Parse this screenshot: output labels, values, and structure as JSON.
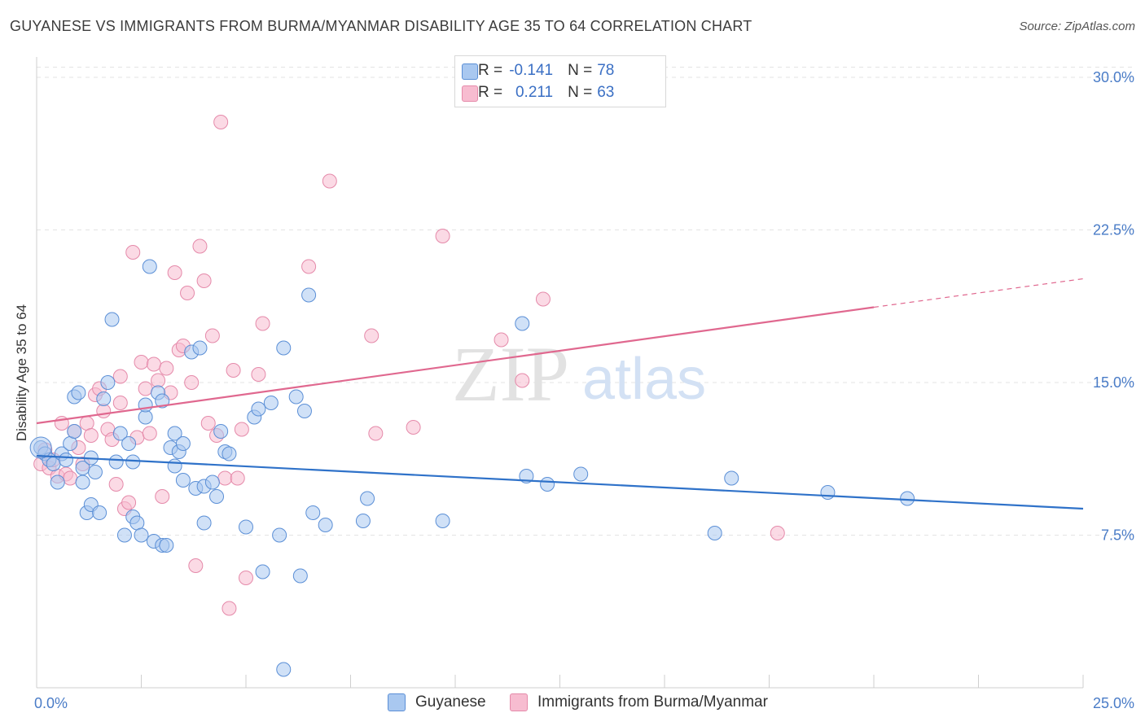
{
  "title": "GUYANESE VS IMMIGRANTS FROM BURMA/MYANMAR DISABILITY AGE 35 TO 64 CORRELATION CHART",
  "source": "Source: ZipAtlas.com",
  "watermark": {
    "zip": "ZIP",
    "atlas": "atlas"
  },
  "colors": {
    "blue_fill": "#a9c8f0",
    "blue_stroke": "#5b8fd6",
    "blue_line": "#2f72c9",
    "pink_fill": "#f7bcd0",
    "pink_stroke": "#e58aaa",
    "pink_line": "#e0688f",
    "tick_label": "#4a7cc7",
    "grid": "#e3e3e3"
  },
  "legend": {
    "rows": [
      {
        "r_label": "R =",
        "r_value": "-0.141",
        "n_label": "N =",
        "n_value": "78"
      },
      {
        "r_label": "R =",
        "r_value": "0.211",
        "n_label": "N =",
        "n_value": "63"
      }
    ]
  },
  "bottom_legend": {
    "series1": "Guyanese",
    "series2": "Immigrants from Burma/Myanmar"
  },
  "chart_data": {
    "type": "scatter",
    "title": "GUYANESE VS IMMIGRANTS FROM BURMA/MYANMAR DISABILITY AGE 35 TO 64 CORRELATION CHART",
    "xlabel": "",
    "ylabel": "Disability Age 35 to 64",
    "xlim": [
      0,
      25
    ],
    "ylim": [
      0,
      31
    ],
    "x_tick_labels": [
      {
        "value": 0,
        "label": "0.0%"
      },
      {
        "value": 25,
        "label": "25.0%"
      }
    ],
    "y_ticks": [
      {
        "value": 7.5,
        "label": "7.5%"
      },
      {
        "value": 15.0,
        "label": "15.0%"
      },
      {
        "value": 22.5,
        "label": "22.5%"
      },
      {
        "value": 30.0,
        "label": "30.0%"
      }
    ],
    "grid": true,
    "legend_position": "top-center",
    "series": [
      {
        "name": "Guyanese",
        "r": -0.141,
        "n": 78,
        "trend": {
          "x0": 0,
          "y0": 11.4,
          "x1": 25,
          "y1": 8.8
        },
        "points": [
          [
            0.1,
            11.8
          ],
          [
            0.2,
            11.5
          ],
          [
            0.3,
            11.2
          ],
          [
            0.4,
            11.0
          ],
          [
            0.5,
            10.1
          ],
          [
            0.6,
            11.5
          ],
          [
            0.7,
            11.2
          ],
          [
            0.8,
            12.0
          ],
          [
            0.9,
            12.6
          ],
          [
            0.9,
            14.3
          ],
          [
            1.0,
            14.5
          ],
          [
            1.1,
            10.8
          ],
          [
            1.1,
            10.1
          ],
          [
            1.2,
            8.6
          ],
          [
            1.3,
            11.3
          ],
          [
            1.3,
            9.0
          ],
          [
            1.4,
            10.6
          ],
          [
            1.5,
            8.6
          ],
          [
            1.6,
            14.2
          ],
          [
            1.7,
            15.0
          ],
          [
            1.8,
            18.1
          ],
          [
            1.9,
            11.1
          ],
          [
            2.0,
            12.5
          ],
          [
            2.1,
            7.5
          ],
          [
            2.2,
            12.0
          ],
          [
            2.3,
            8.4
          ],
          [
            2.3,
            11.1
          ],
          [
            2.4,
            8.1
          ],
          [
            2.5,
            7.5
          ],
          [
            2.6,
            13.3
          ],
          [
            2.6,
            13.9
          ],
          [
            2.7,
            20.7
          ],
          [
            2.8,
            7.2
          ],
          [
            2.9,
            14.5
          ],
          [
            3.0,
            14.1
          ],
          [
            3.0,
            7.0
          ],
          [
            3.1,
            7.0
          ],
          [
            3.2,
            11.8
          ],
          [
            3.3,
            10.9
          ],
          [
            3.3,
            12.5
          ],
          [
            3.4,
            11.6
          ],
          [
            3.5,
            12.0
          ],
          [
            3.5,
            10.2
          ],
          [
            3.7,
            16.5
          ],
          [
            3.8,
            9.8
          ],
          [
            3.9,
            16.7
          ],
          [
            4.0,
            8.1
          ],
          [
            4.0,
            9.9
          ],
          [
            4.2,
            10.1
          ],
          [
            4.3,
            9.4
          ],
          [
            4.4,
            12.6
          ],
          [
            4.5,
            11.6
          ],
          [
            4.6,
            11.5
          ],
          [
            5.0,
            7.9
          ],
          [
            5.2,
            13.3
          ],
          [
            5.3,
            13.7
          ],
          [
            5.4,
            5.7
          ],
          [
            5.6,
            14.0
          ],
          [
            5.8,
            7.5
          ],
          [
            5.9,
            16.7
          ],
          [
            6.2,
            14.3
          ],
          [
            6.3,
            5.5
          ],
          [
            6.4,
            13.6
          ],
          [
            6.5,
            19.3
          ],
          [
            6.6,
            8.6
          ],
          [
            6.9,
            8.0
          ],
          [
            7.8,
            8.2
          ],
          [
            7.9,
            9.3
          ],
          [
            9.7,
            8.2
          ],
          [
            11.6,
            17.9
          ],
          [
            11.7,
            10.4
          ],
          [
            13.0,
            10.5
          ],
          [
            16.2,
            7.6
          ],
          [
            16.6,
            10.3
          ],
          [
            18.9,
            9.6
          ],
          [
            20.8,
            9.3
          ],
          [
            5.9,
            0.9
          ],
          [
            12.2,
            10.0
          ]
        ]
      },
      {
        "name": "Immigrants from Burma/Myanmar",
        "r": 0.211,
        "n": 63,
        "trend": {
          "x0": 0,
          "y0": 13.0,
          "x1": 20.0,
          "y1": 18.7,
          "dash_x1": 25,
          "dash_y1": 20.1
        },
        "points": [
          [
            0.1,
            11.0
          ],
          [
            0.2,
            11.7
          ],
          [
            0.3,
            10.8
          ],
          [
            0.4,
            11.2
          ],
          [
            0.5,
            10.4
          ],
          [
            0.6,
            13.0
          ],
          [
            0.7,
            10.5
          ],
          [
            0.8,
            10.3
          ],
          [
            0.9,
            12.6
          ],
          [
            1.0,
            11.8
          ],
          [
            1.1,
            11.0
          ],
          [
            1.2,
            13.0
          ],
          [
            1.3,
            12.4
          ],
          [
            1.4,
            14.4
          ],
          [
            1.5,
            14.7
          ],
          [
            1.6,
            13.6
          ],
          [
            1.7,
            12.7
          ],
          [
            1.8,
            12.2
          ],
          [
            1.9,
            10.0
          ],
          [
            2.0,
            14.0
          ],
          [
            2.0,
            15.3
          ],
          [
            2.1,
            8.8
          ],
          [
            2.2,
            9.1
          ],
          [
            2.3,
            21.4
          ],
          [
            2.4,
            12.3
          ],
          [
            2.5,
            16.0
          ],
          [
            2.6,
            14.7
          ],
          [
            2.7,
            12.5
          ],
          [
            2.8,
            15.9
          ],
          [
            2.9,
            15.1
          ],
          [
            3.0,
            9.4
          ],
          [
            3.1,
            15.7
          ],
          [
            3.2,
            14.5
          ],
          [
            3.3,
            20.4
          ],
          [
            3.4,
            16.6
          ],
          [
            3.5,
            16.8
          ],
          [
            3.6,
            19.4
          ],
          [
            3.7,
            15.0
          ],
          [
            3.8,
            6.0
          ],
          [
            3.9,
            21.7
          ],
          [
            4.0,
            20.0
          ],
          [
            4.1,
            13.0
          ],
          [
            4.2,
            17.3
          ],
          [
            4.3,
            12.4
          ],
          [
            4.4,
            27.8
          ],
          [
            4.5,
            10.3
          ],
          [
            4.6,
            3.9
          ],
          [
            4.7,
            15.6
          ],
          [
            4.8,
            10.3
          ],
          [
            4.9,
            12.7
          ],
          [
            5.0,
            5.4
          ],
          [
            5.3,
            15.4
          ],
          [
            5.4,
            17.9
          ],
          [
            6.5,
            20.7
          ],
          [
            7.0,
            24.9
          ],
          [
            8.0,
            17.3
          ],
          [
            8.1,
            12.5
          ],
          [
            9.0,
            12.8
          ],
          [
            9.7,
            22.2
          ],
          [
            11.1,
            17.1
          ],
          [
            11.6,
            15.1
          ],
          [
            12.1,
            19.1
          ],
          [
            17.7,
            7.6
          ]
        ]
      }
    ]
  }
}
